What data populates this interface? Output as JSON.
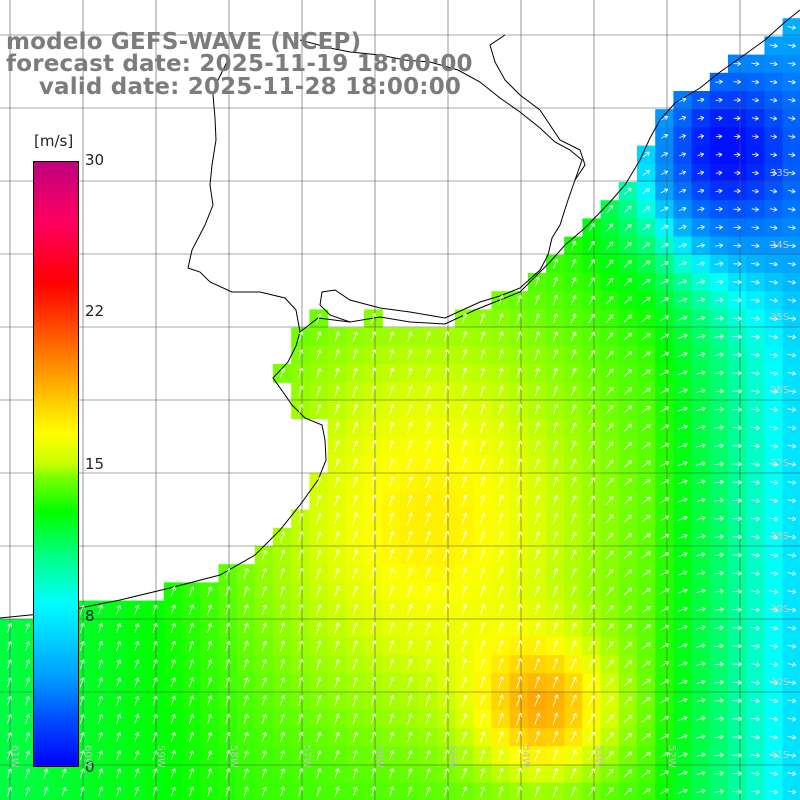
{
  "title": {
    "line1": "modelo GEFS-WAVE (NCEP)",
    "line2": "forecast date: 2025-11-19 18:00:00",
    "line3": "    valid date: 2025-11-28 18:00:00"
  },
  "colorbar": {
    "unit": "[m/s]",
    "ticks": [
      "30",
      "22",
      "15",
      "8",
      "0"
    ],
    "min": 0,
    "max": 30
  },
  "lat_labels": [
    "33S",
    "34S",
    "35S",
    "36S",
    "37S",
    "38S",
    "39S",
    "40S",
    "41S"
  ],
  "lon_labels": [
    "61W",
    "60W",
    "59W",
    "58W",
    "57W",
    "56W",
    "55W",
    "54W",
    "53W",
    "52W"
  ],
  "colors": {
    "land": "#ffffff",
    "coast": "#000000",
    "grid": "#555555",
    "arrow": "#ffffff",
    "title": "#7c7c7c"
  }
}
